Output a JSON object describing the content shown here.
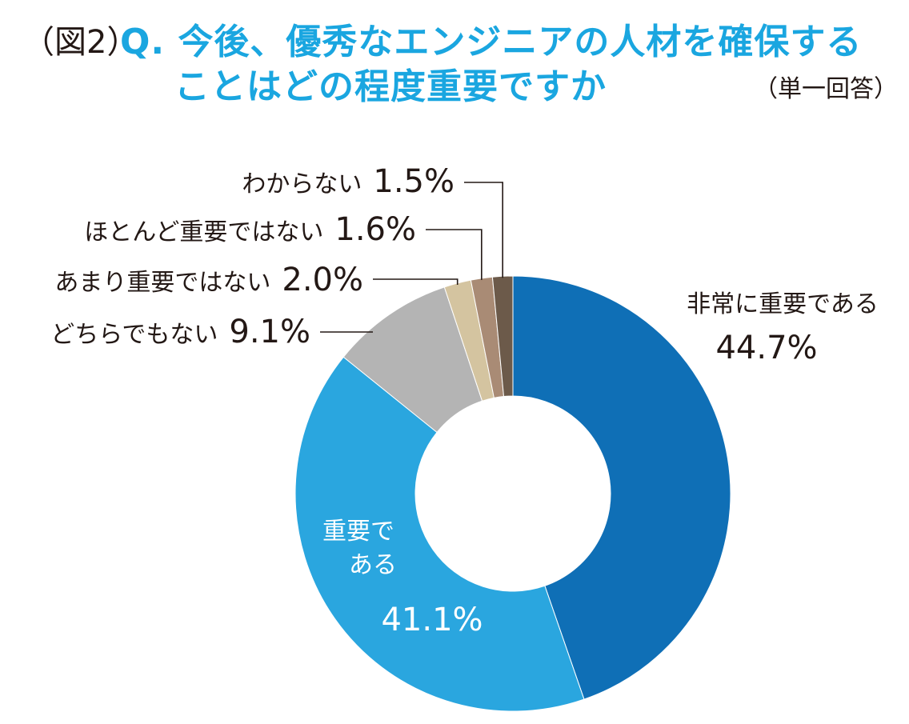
{
  "header": {
    "figure_number": "（図2）",
    "question_line1": "Q. 今後、優秀なエンジニアの人材を確保する",
    "question_line2": "ことはどの程度重要ですか",
    "answer_type": "（単一回答）"
  },
  "chart_data": {
    "type": "pie",
    "donut": true,
    "start_angle_deg": 0,
    "direction": "clockwise",
    "slices": [
      {
        "label": "非常に重要である",
        "value": 44.7,
        "value_label": "44.7%",
        "color": "#0f6fb6",
        "label_position": "outside-right"
      },
      {
        "label": "重要である",
        "value": 41.1,
        "value_label": "41.1%",
        "color": "#2aa6df",
        "label_position": "inside"
      },
      {
        "label": "どちらでもない",
        "value": 9.1,
        "value_label": "9.1%",
        "color": "#b4b4b4",
        "label_position": "left-leader"
      },
      {
        "label": "あまり重要ではない",
        "value": 2.0,
        "value_label": "2.0%",
        "color": "#d4c4a0",
        "label_position": "left-leader"
      },
      {
        "label": "ほとんど重要ではない",
        "value": 1.6,
        "value_label": "1.6%",
        "color": "#a98b75",
        "label_position": "left-leader"
      },
      {
        "label": "わからない",
        "value": 1.5,
        "value_label": "1.5%",
        "color": "#6c5a4a",
        "label_position": "left-leader"
      }
    ]
  }
}
